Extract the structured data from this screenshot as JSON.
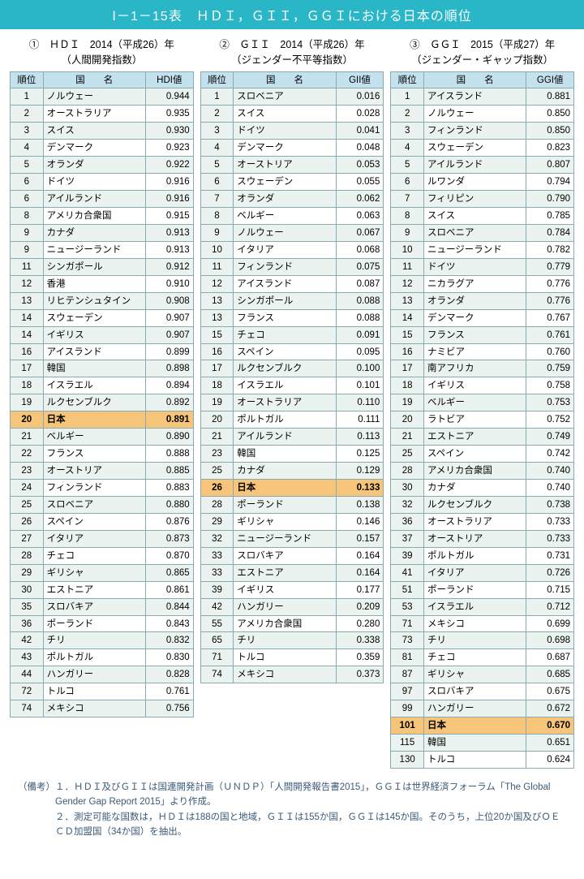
{
  "colors": {
    "title_bg": "#29b6c6",
    "title_text": "#ffffff",
    "header_bg": "#c4e1ee",
    "row_alt_bg": "#eaf3ef",
    "row_bg": "#ffffff",
    "highlight_bg": "#f7c57a",
    "border": "#88aab0",
    "notes_text": "#3a5a78"
  },
  "title": "Ⅰ－1－15表　ＨＤＩ，ＧＩＩ，ＧＧＩにおける日本の順位",
  "panels": [
    {
      "heading": "①　ＨＤＩ　2014（平成26）年\n（人間開発指数）",
      "columns": [
        "順位",
        "国　　名",
        "HDI値"
      ],
      "highlight_rank": 20,
      "rows": [
        {
          "rank": 1,
          "name": "ノルウェー",
          "value": "0.944"
        },
        {
          "rank": 2,
          "name": "オーストラリア",
          "value": "0.935"
        },
        {
          "rank": 3,
          "name": "スイス",
          "value": "0.930"
        },
        {
          "rank": 4,
          "name": "デンマーク",
          "value": "0.923"
        },
        {
          "rank": 5,
          "name": "オランダ",
          "value": "0.922"
        },
        {
          "rank": 6,
          "name": "ドイツ",
          "value": "0.916"
        },
        {
          "rank": 6,
          "name": "アイルランド",
          "value": "0.916"
        },
        {
          "rank": 8,
          "name": "アメリカ合衆国",
          "value": "0.915"
        },
        {
          "rank": 9,
          "name": "カナダ",
          "value": "0.913"
        },
        {
          "rank": 9,
          "name": "ニュージーランド",
          "value": "0.913"
        },
        {
          "rank": 11,
          "name": "シンガポール",
          "value": "0.912"
        },
        {
          "rank": 12,
          "name": "香港",
          "value": "0.910"
        },
        {
          "rank": 13,
          "name": "リヒテンシュタイン",
          "value": "0.908"
        },
        {
          "rank": 14,
          "name": "スウェーデン",
          "value": "0.907"
        },
        {
          "rank": 14,
          "name": "イギリス",
          "value": "0.907"
        },
        {
          "rank": 16,
          "name": "アイスランド",
          "value": "0.899"
        },
        {
          "rank": 17,
          "name": "韓国",
          "value": "0.898"
        },
        {
          "rank": 18,
          "name": "イスラエル",
          "value": "0.894"
        },
        {
          "rank": 19,
          "name": "ルクセンブルク",
          "value": "0.892"
        },
        {
          "rank": 20,
          "name": "日本",
          "value": "0.891"
        },
        {
          "rank": 21,
          "name": "ベルギー",
          "value": "0.890"
        },
        {
          "rank": 22,
          "name": "フランス",
          "value": "0.888"
        },
        {
          "rank": 23,
          "name": "オーストリア",
          "value": "0.885"
        },
        {
          "rank": 24,
          "name": "フィンランド",
          "value": "0.883"
        },
        {
          "rank": 25,
          "name": "スロベニア",
          "value": "0.880"
        },
        {
          "rank": 26,
          "name": "スペイン",
          "value": "0.876"
        },
        {
          "rank": 27,
          "name": "イタリア",
          "value": "0.873"
        },
        {
          "rank": 28,
          "name": "チェコ",
          "value": "0.870"
        },
        {
          "rank": 29,
          "name": "ギリシャ",
          "value": "0.865"
        },
        {
          "rank": 30,
          "name": "エストニア",
          "value": "0.861"
        },
        {
          "rank": 35,
          "name": "スロバキア",
          "value": "0.844"
        },
        {
          "rank": 36,
          "name": "ポーランド",
          "value": "0.843"
        },
        {
          "rank": 42,
          "name": "チリ",
          "value": "0.832"
        },
        {
          "rank": 43,
          "name": "ポルトガル",
          "value": "0.830"
        },
        {
          "rank": 44,
          "name": "ハンガリー",
          "value": "0.828"
        },
        {
          "rank": 72,
          "name": "トルコ",
          "value": "0.761"
        },
        {
          "rank": 74,
          "name": "メキシコ",
          "value": "0.756"
        }
      ]
    },
    {
      "heading": "②　ＧＩＩ　2014（平成26）年\n（ジェンダー不平等指数）",
      "columns": [
        "順位",
        "国　　名",
        "GII値"
      ],
      "highlight_rank": 26,
      "rows": [
        {
          "rank": 1,
          "name": "スロベニア",
          "value": "0.016"
        },
        {
          "rank": 2,
          "name": "スイス",
          "value": "0.028"
        },
        {
          "rank": 3,
          "name": "ドイツ",
          "value": "0.041"
        },
        {
          "rank": 4,
          "name": "デンマーク",
          "value": "0.048"
        },
        {
          "rank": 5,
          "name": "オーストリア",
          "value": "0.053"
        },
        {
          "rank": 6,
          "name": "スウェーデン",
          "value": "0.055"
        },
        {
          "rank": 7,
          "name": "オランダ",
          "value": "0.062"
        },
        {
          "rank": 8,
          "name": "ベルギー",
          "value": "0.063"
        },
        {
          "rank": 9,
          "name": "ノルウェー",
          "value": "0.067"
        },
        {
          "rank": 10,
          "name": "イタリア",
          "value": "0.068"
        },
        {
          "rank": 11,
          "name": "フィンランド",
          "value": "0.075"
        },
        {
          "rank": 12,
          "name": "アイスランド",
          "value": "0.087"
        },
        {
          "rank": 13,
          "name": "シンガポール",
          "value": "0.088"
        },
        {
          "rank": 13,
          "name": "フランス",
          "value": "0.088"
        },
        {
          "rank": 15,
          "name": "チェコ",
          "value": "0.091"
        },
        {
          "rank": 16,
          "name": "スペイン",
          "value": "0.095"
        },
        {
          "rank": 17,
          "name": "ルクセンブルク",
          "value": "0.100"
        },
        {
          "rank": 18,
          "name": "イスラエル",
          "value": "0.101"
        },
        {
          "rank": 19,
          "name": "オーストラリア",
          "value": "0.110"
        },
        {
          "rank": 20,
          "name": "ポルトガル",
          "value": "0.111"
        },
        {
          "rank": 21,
          "name": "アイルランド",
          "value": "0.113"
        },
        {
          "rank": 23,
          "name": "韓国",
          "value": "0.125"
        },
        {
          "rank": 25,
          "name": "カナダ",
          "value": "0.129"
        },
        {
          "rank": 26,
          "name": "日本",
          "value": "0.133"
        },
        {
          "rank": 28,
          "name": "ポーランド",
          "value": "0.138"
        },
        {
          "rank": 29,
          "name": "ギリシャ",
          "value": "0.146"
        },
        {
          "rank": 32,
          "name": "ニュージーランド",
          "value": "0.157"
        },
        {
          "rank": 33,
          "name": "スロバキア",
          "value": "0.164"
        },
        {
          "rank": 33,
          "name": "エストニア",
          "value": "0.164"
        },
        {
          "rank": 39,
          "name": "イギリス",
          "value": "0.177"
        },
        {
          "rank": 42,
          "name": "ハンガリー",
          "value": "0.209"
        },
        {
          "rank": 55,
          "name": "アメリカ合衆国",
          "value": "0.280"
        },
        {
          "rank": 65,
          "name": "チリ",
          "value": "0.338"
        },
        {
          "rank": 71,
          "name": "トルコ",
          "value": "0.359"
        },
        {
          "rank": 74,
          "name": "メキシコ",
          "value": "0.373"
        }
      ]
    },
    {
      "heading": "③　ＧＧＩ　2015（平成27）年\n（ジェンダー・ギャップ指数）",
      "columns": [
        "順位",
        "国　　名",
        "GGI値"
      ],
      "highlight_rank": 101,
      "rows": [
        {
          "rank": 1,
          "name": "アイスランド",
          "value": "0.881"
        },
        {
          "rank": 2,
          "name": "ノルウェー",
          "value": "0.850"
        },
        {
          "rank": 3,
          "name": "フィンランド",
          "value": "0.850"
        },
        {
          "rank": 4,
          "name": "スウェーデン",
          "value": "0.823"
        },
        {
          "rank": 5,
          "name": "アイルランド",
          "value": "0.807"
        },
        {
          "rank": 6,
          "name": "ルワンダ",
          "value": "0.794"
        },
        {
          "rank": 7,
          "name": "フィリピン",
          "value": "0.790"
        },
        {
          "rank": 8,
          "name": "スイス",
          "value": "0.785"
        },
        {
          "rank": 9,
          "name": "スロベニア",
          "value": "0.784"
        },
        {
          "rank": 10,
          "name": "ニュージーランド",
          "value": "0.782"
        },
        {
          "rank": 11,
          "name": "ドイツ",
          "value": "0.779"
        },
        {
          "rank": 12,
          "name": "ニカラグア",
          "value": "0.776"
        },
        {
          "rank": 13,
          "name": "オランダ",
          "value": "0.776"
        },
        {
          "rank": 14,
          "name": "デンマーク",
          "value": "0.767"
        },
        {
          "rank": 15,
          "name": "フランス",
          "value": "0.761"
        },
        {
          "rank": 16,
          "name": "ナミビア",
          "value": "0.760"
        },
        {
          "rank": 17,
          "name": "南アフリカ",
          "value": "0.759"
        },
        {
          "rank": 18,
          "name": "イギリス",
          "value": "0.758"
        },
        {
          "rank": 19,
          "name": "ベルギー",
          "value": "0.753"
        },
        {
          "rank": 20,
          "name": "ラトビア",
          "value": "0.752"
        },
        {
          "rank": 21,
          "name": "エストニア",
          "value": "0.749"
        },
        {
          "rank": 25,
          "name": "スペイン",
          "value": "0.742"
        },
        {
          "rank": 28,
          "name": "アメリカ合衆国",
          "value": "0.740"
        },
        {
          "rank": 30,
          "name": "カナダ",
          "value": "0.740"
        },
        {
          "rank": 32,
          "name": "ルクセンブルク",
          "value": "0.738"
        },
        {
          "rank": 36,
          "name": "オーストラリア",
          "value": "0.733"
        },
        {
          "rank": 37,
          "name": "オーストリア",
          "value": "0.733"
        },
        {
          "rank": 39,
          "name": "ポルトガル",
          "value": "0.731"
        },
        {
          "rank": 41,
          "name": "イタリア",
          "value": "0.726"
        },
        {
          "rank": 51,
          "name": "ポーランド",
          "value": "0.715"
        },
        {
          "rank": 53,
          "name": "イスラエル",
          "value": "0.712"
        },
        {
          "rank": 71,
          "name": "メキシコ",
          "value": "0.699"
        },
        {
          "rank": 73,
          "name": "チリ",
          "value": "0.698"
        },
        {
          "rank": 81,
          "name": "チェコ",
          "value": "0.687"
        },
        {
          "rank": 87,
          "name": "ギリシャ",
          "value": "0.685"
        },
        {
          "rank": 97,
          "name": "スロバキア",
          "value": "0.675"
        },
        {
          "rank": 99,
          "name": "ハンガリー",
          "value": "0.672"
        },
        {
          "rank": 101,
          "name": "日本",
          "value": "0.670"
        },
        {
          "rank": 115,
          "name": "韓国",
          "value": "0.651"
        },
        {
          "rank": 130,
          "name": "トルコ",
          "value": "0.624"
        }
      ]
    }
  ],
  "notes": {
    "lead": "（備考）",
    "items": [
      "１．ＨＤＩ及びＧＩＩは国連開発計画（ＵＮＤＰ）「人間開発報告書2015」，ＧＧＩは世界経済フォーラム「The Global Gender Gap Report 2015」より作成。",
      "２．測定可能な国数は，ＨＤＩは188の国と地域，ＧＩＩは155か国，ＧＧＩは145か国。そのうち，上位20か国及びＯＥＣＤ加盟国（34か国）を抽出。"
    ]
  }
}
